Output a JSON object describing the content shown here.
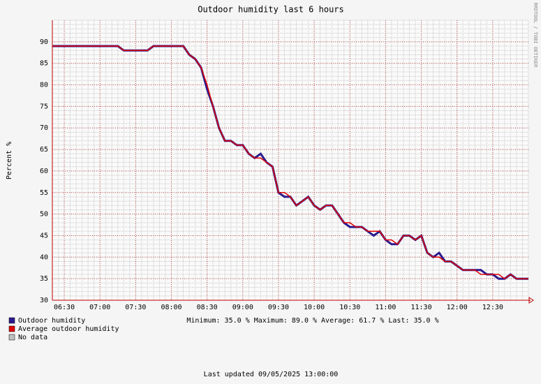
{
  "chart_data": {
    "type": "line",
    "title": "Outdoor humidity last 6 hours",
    "y_label": "Percent   %",
    "watermark": "RRDTOOL / TOBI OETIKER",
    "stats": "Minimum: 35.0 %  Maximum: 89.0 %  Average: 61.7 %  Last: 35.0 %",
    "footer": "Last updated 09/05/2025 13:00:00",
    "no_data_label": "No data",
    "no_data_color": "#c0c0c0",
    "x": [
      "06:20",
      "06:25",
      "06:30",
      "06:35",
      "06:40",
      "06:45",
      "06:50",
      "06:55",
      "07:00",
      "07:05",
      "07:10",
      "07:15",
      "07:20",
      "07:25",
      "07:30",
      "07:35",
      "07:40",
      "07:45",
      "07:50",
      "07:55",
      "08:00",
      "08:05",
      "08:10",
      "08:15",
      "08:20",
      "08:25",
      "08:30",
      "08:35",
      "08:40",
      "08:45",
      "08:50",
      "08:55",
      "09:00",
      "09:05",
      "09:10",
      "09:15",
      "09:20",
      "09:25",
      "09:30",
      "09:35",
      "09:40",
      "09:45",
      "09:50",
      "09:55",
      "10:00",
      "10:05",
      "10:10",
      "10:15",
      "10:20",
      "10:25",
      "10:30",
      "10:35",
      "10:40",
      "10:45",
      "10:50",
      "10:55",
      "11:00",
      "11:05",
      "11:10",
      "11:15",
      "11:20",
      "11:25",
      "11:30",
      "11:35",
      "11:40",
      "11:45",
      "11:50",
      "11:55",
      "12:00",
      "12:05",
      "12:10",
      "12:15",
      "12:20",
      "12:25",
      "12:30",
      "12:35",
      "12:40",
      "12:45",
      "12:50",
      "12:55",
      "13:00"
    ],
    "series": [
      {
        "name": "Outdoor humidity",
        "color": "#2b1a8f",
        "values": [
          89,
          89,
          89,
          89,
          89,
          89,
          89,
          89,
          89,
          89,
          89,
          89,
          88,
          88,
          88,
          88,
          88,
          89,
          89,
          89,
          89,
          89,
          89,
          87,
          86,
          84,
          79,
          75,
          70,
          67,
          67,
          66,
          66,
          64,
          63,
          64,
          62,
          61,
          55,
          54,
          54,
          52,
          53,
          54,
          52,
          51,
          52,
          52,
          50,
          48,
          47,
          47,
          47,
          46,
          45,
          46,
          44,
          43,
          43,
          45,
          45,
          44,
          45,
          41,
          40,
          41,
          39,
          39,
          38,
          37,
          37,
          37,
          37,
          36,
          36,
          35,
          35,
          36,
          35,
          35,
          35
        ]
      },
      {
        "name": "Average outdoor humidity",
        "color": "#e00000",
        "values": [
          89,
          89,
          89,
          89,
          89,
          89,
          89,
          89,
          89,
          89,
          89,
          89,
          88,
          88,
          88,
          88,
          88,
          89,
          89,
          89,
          89,
          89,
          89,
          87,
          86,
          84,
          80,
          75,
          70,
          67,
          67,
          66,
          66,
          64,
          63,
          63,
          62,
          61,
          55,
          55,
          54,
          52,
          53,
          54,
          52,
          51,
          52,
          52,
          50,
          48,
          48,
          47,
          47,
          46,
          46,
          46,
          44,
          44,
          43,
          45,
          45,
          44,
          45,
          41,
          40,
          40,
          39,
          39,
          38,
          37,
          37,
          37,
          36,
          36,
          36,
          36,
          35,
          36,
          35,
          35,
          35
        ]
      }
    ],
    "xlim": [
      "06:20",
      "13:00"
    ],
    "xticks": [
      "06:30",
      "07:00",
      "07:30",
      "08:00",
      "08:30",
      "09:00",
      "09:30",
      "10:00",
      "10:30",
      "11:00",
      "11:30",
      "12:00",
      "12:30"
    ],
    "ylim": [
      30,
      95
    ],
    "yticks": [
      30,
      35,
      40,
      45,
      50,
      55,
      60,
      65,
      70,
      75,
      80,
      85,
      90
    ],
    "grid": true
  }
}
